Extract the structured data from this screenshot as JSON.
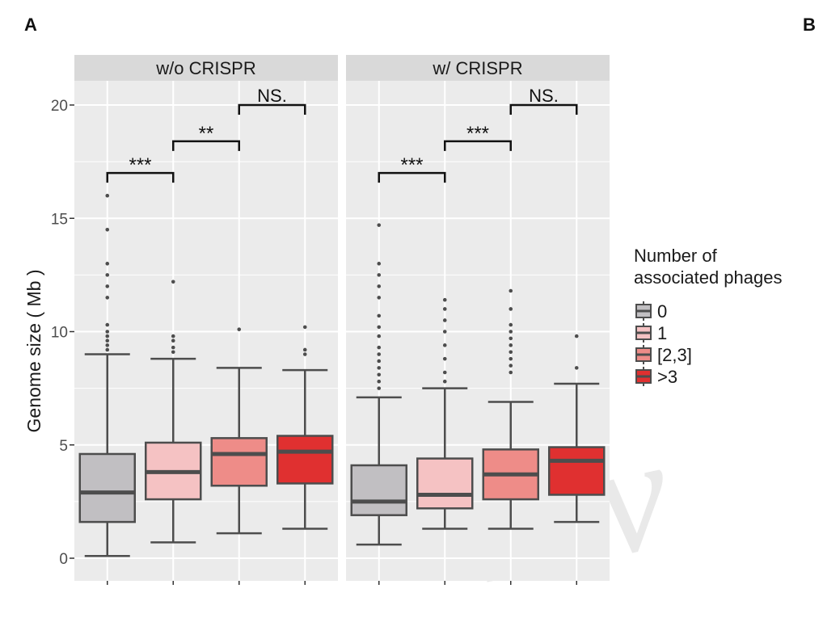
{
  "panel_labels": {
    "left": "A",
    "right": "B"
  },
  "watermark_text": "rev",
  "colors": {
    "panel_bg": "#ebebeb",
    "strip_bg": "#d9d9d9",
    "grid": "#ffffff",
    "box_line": "#4d4d4d",
    "outlier": "#4d4d4d",
    "text": "#1a1a1a",
    "tick_text": "#4d4d4d"
  },
  "chart_data": {
    "type": "box",
    "ylabel": "Genome size ( Mb )",
    "ylim": [
      0,
      21
    ],
    "yticks": [
      "0",
      "5",
      "10",
      "15",
      "20"
    ],
    "legend": {
      "title_lines": [
        "Number of",
        "associated phages"
      ],
      "entries": [
        {
          "label": "0",
          "color": "#c1bfc2"
        },
        {
          "label": "1",
          "color": "#f5c2c3"
        },
        {
          "label": "[2,3]",
          "color": "#ee8c88"
        },
        {
          "label": ">3",
          "color": "#e03030"
        }
      ],
      "placement": "right"
    },
    "panels": [
      {
        "strip": "w/o CRISPR",
        "boxes": [
          {
            "group": "0",
            "min": 0.1,
            "q1": 1.6,
            "median": 2.9,
            "q3": 4.6,
            "max": 9.0,
            "outliers": [
              9.2,
              9.4,
              9.6,
              9.8,
              10.0,
              10.3,
              11.5,
              12.0,
              12.5,
              13.0,
              14.5,
              16.0
            ]
          },
          {
            "group": "1",
            "min": 0.7,
            "q1": 2.6,
            "median": 3.8,
            "q3": 5.1,
            "max": 8.8,
            "outliers": [
              9.1,
              9.3,
              9.6,
              9.8,
              12.2
            ]
          },
          {
            "group": "[2,3]",
            "min": 1.1,
            "q1": 3.2,
            "median": 4.6,
            "q3": 5.3,
            "max": 8.4,
            "outliers": [
              10.1
            ]
          },
          {
            "group": ">3",
            "min": 1.3,
            "q1": 3.3,
            "median": 4.7,
            "q3": 5.4,
            "max": 8.3,
            "outliers": [
              9.0,
              9.2,
              10.2
            ]
          }
        ],
        "comparisons": [
          {
            "from": 0,
            "to": 1,
            "label": "***",
            "y": 17.0
          },
          {
            "from": 1,
            "to": 2,
            "label": "**",
            "y": 18.4
          },
          {
            "from": 2,
            "to": 3,
            "label": "NS.",
            "y": 20.0
          }
        ]
      },
      {
        "strip": "w/ CRISPR",
        "boxes": [
          {
            "group": "0",
            "min": 0.6,
            "q1": 1.9,
            "median": 2.5,
            "q3": 4.1,
            "max": 7.1,
            "outliers": [
              7.5,
              7.8,
              8.1,
              8.4,
              8.7,
              9.0,
              9.3,
              9.8,
              10.2,
              10.7,
              11.5,
              12.0,
              12.5,
              13.0,
              14.7
            ]
          },
          {
            "group": "1",
            "min": 1.3,
            "q1": 2.2,
            "median": 2.8,
            "q3": 4.4,
            "max": 7.5,
            "outliers": [
              7.8,
              8.2,
              8.8,
              9.4,
              10.0,
              10.5,
              11.0,
              11.4
            ]
          },
          {
            "group": "[2,3]",
            "min": 1.3,
            "q1": 2.6,
            "median": 3.7,
            "q3": 4.8,
            "max": 6.9,
            "outliers": [
              8.2,
              8.5,
              8.8,
              9.1,
              9.4,
              9.7,
              10.0,
              10.3,
              11.0,
              11.8
            ]
          },
          {
            "group": ">3",
            "min": 1.6,
            "q1": 2.8,
            "median": 4.3,
            "q3": 4.9,
            "max": 7.7,
            "outliers": [
              8.4,
              9.8
            ]
          }
        ],
        "comparisons": [
          {
            "from": 0,
            "to": 1,
            "label": "***",
            "y": 17.0
          },
          {
            "from": 1,
            "to": 2,
            "label": "***",
            "y": 18.4
          },
          {
            "from": 2,
            "to": 3,
            "label": "NS.",
            "y": 20.0
          }
        ]
      }
    ]
  }
}
